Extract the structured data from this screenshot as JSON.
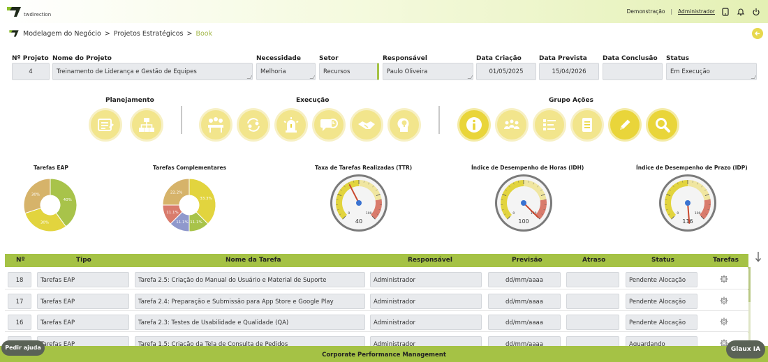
{
  "header": {
    "logo_text": "twdirection",
    "demo_link": "Demonstração",
    "separator": "|",
    "user_link": "Administrador"
  },
  "breadcrumb": {
    "items": [
      "Modelagem do Negócio",
      "Projetos Estratégicos",
      "Book"
    ],
    "separator": ">"
  },
  "project": {
    "fields": [
      {
        "label": "Nº Projeto",
        "value": "4"
      },
      {
        "label": "Nome do Projeto",
        "value": "Treinamento de Liderança e Gestão de Equipes"
      },
      {
        "label": "Necessidade",
        "value": "Melhoria"
      },
      {
        "label": "Setor",
        "value": "Recursos"
      },
      {
        "label": "Responsável",
        "value": "Paulo Oliveira"
      },
      {
        "label": "Data Criação",
        "value": "01/05/2025"
      },
      {
        "label": "Data Prevista",
        "value": "15/04/2026"
      },
      {
        "label": "Data Conclusão",
        "value": ""
      },
      {
        "label": "Status",
        "value": "Em Execução"
      }
    ]
  },
  "groups": [
    {
      "title": "Planejamento",
      "buttons": [
        "report-icon",
        "org-chart-icon"
      ]
    },
    {
      "title": "Execução",
      "buttons": [
        "meeting-icon",
        "cycle-people-icon",
        "alert-siren-icon",
        "chat-clock-icon",
        "handshake-icon",
        "idea-head-icon"
      ]
    },
    {
      "title": "Grupo Ações",
      "buttons": [
        "info-icon",
        "team-icon",
        "checklist-icon",
        "document-icon",
        "pencil-icon",
        "search-icon"
      ]
    }
  ],
  "colors": {
    "accent_green": "#a5c245",
    "accent_yellow": "#e9d53a",
    "donut_green": "#a8c34a",
    "donut_yellow": "#e2d43e",
    "donut_tan": "#d6b36a",
    "donut_red": "#d97b6c",
    "donut_blue": "#8f98cc"
  },
  "chart_data": [
    {
      "type": "pie",
      "title": "Tarefas EAP",
      "values": [
        40,
        30,
        30
      ],
      "labels": [
        "40%",
        "30%",
        "30%"
      ],
      "colors": [
        "#a8c34a",
        "#e2d43e",
        "#d6b36a"
      ]
    },
    {
      "type": "pie",
      "title": "Tarefas Complementares",
      "values": [
        33.3,
        11.1,
        11.1,
        11.1,
        22.2
      ],
      "labels": [
        "33.3%",
        "11.1%",
        "11.1%",
        "11.1%",
        "22.2%"
      ],
      "colors": [
        "#e2d43e",
        "#a8c34a",
        "#8f98cc",
        "#d97b6c",
        "#d6b36a"
      ]
    },
    {
      "type": "gauge",
      "title": "Taxa de Tarefas Realizadas (TTR)",
      "value": 40,
      "min": 0,
      "max": 100,
      "tick_labels": [
        "0",
        "100"
      ]
    },
    {
      "type": "gauge",
      "title": "Índice de Desempenho de Horas (IDH)",
      "value": 100,
      "min": 0,
      "max": 100,
      "tick_labels": [
        "0",
        "100"
      ]
    },
    {
      "type": "gauge",
      "title": "Índice de Desempenho de Prazo (IDP)",
      "value": 116,
      "min": 0,
      "max": 100,
      "tick_labels": [
        "0",
        "100"
      ]
    }
  ],
  "table": {
    "headers": [
      "Nº",
      "Tipo",
      "Nome da Tarefa",
      "Responsável",
      "Previsão",
      "Atraso",
      "Status",
      "Tarefas"
    ],
    "rows": [
      {
        "num": "18",
        "tipo": "Tarefas EAP",
        "nome": "Tarefa 2.5: Criação do Manual do Usuário e Material de Suporte",
        "resp": "Administrador",
        "prev": "dd/mm/aaaa",
        "atraso": "",
        "status": "Pendente Alocação"
      },
      {
        "num": "17",
        "tipo": "Tarefas EAP",
        "nome": "Tarefa 2.4: Preparação e Submissão para App Store e Google Play",
        "resp": "Administrador",
        "prev": "dd/mm/aaaa",
        "atraso": "",
        "status": "Pendente Alocação"
      },
      {
        "num": "16",
        "tipo": "Tarefas EAP",
        "nome": "Tarefa 2.3: Testes de Usabilidade e Qualidade (QA)",
        "resp": "Administrador",
        "prev": "dd/mm/aaaa",
        "atraso": "",
        "status": "Pendente Alocação"
      },
      {
        "num": "",
        "tipo": "Tarefas EAP",
        "nome": "Tarefa 1.5: Criação da Tela de Consulta de Pedidos",
        "resp": "Administrador",
        "prev": "dd/mm/aaaa",
        "atraso": "",
        "status": "Aguardando"
      }
    ]
  },
  "footer": {
    "text": "Corporate Performance Management",
    "help_button": "Pedir ajuda",
    "ai_button": "Glaux IA"
  }
}
